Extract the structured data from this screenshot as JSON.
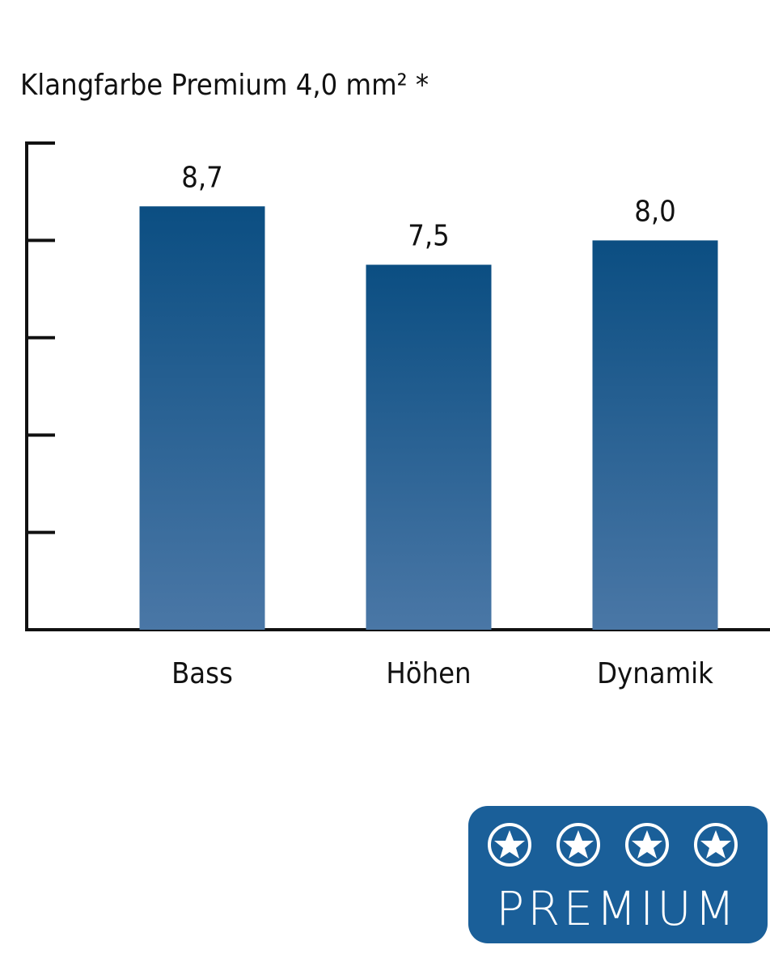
{
  "chart_data": {
    "type": "bar",
    "title": "Klangfarbe Premium  4,0 mm² *",
    "categories": [
      "Bass",
      "Höhen",
      "Dynamik"
    ],
    "values": [
      8.7,
      7.5,
      8.0
    ],
    "value_labels": [
      "8,7",
      "7,5",
      "8,0"
    ],
    "color": "#0b4e82",
    "ylim": [
      0,
      10
    ],
    "yticks": [
      0,
      2,
      4,
      6,
      8,
      10
    ]
  },
  "badge": {
    "text": "PREMIUM"
  }
}
